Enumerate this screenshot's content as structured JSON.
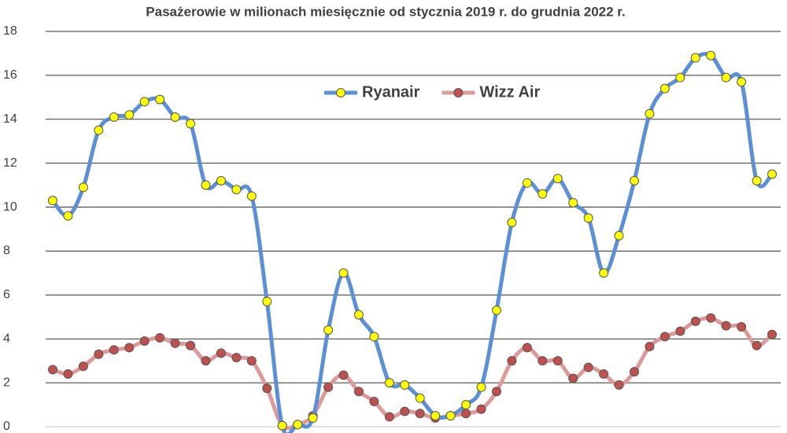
{
  "chart_data": {
    "type": "line",
    "title": "Pasażerowie w milionach miesięcznie od stycznia 2019 r. do grudnia 2022 r.",
    "ylim": [
      0,
      18
    ],
    "yticks": [
      0,
      2,
      4,
      6,
      8,
      10,
      12,
      14,
      16,
      18
    ],
    "grid": true,
    "legend": "top",
    "series": [
      {
        "name": "Ryanair",
        "color": "#5b8fd6",
        "marker_color": "#ffff00",
        "values": [
          10.3,
          9.6,
          10.9,
          13.5,
          14.1,
          14.2,
          14.8,
          14.9,
          14.1,
          13.8,
          11.0,
          11.2,
          10.8,
          10.5,
          5.7,
          0.05,
          0.1,
          0.4,
          4.4,
          7.0,
          5.1,
          4.1,
          2.0,
          1.9,
          1.3,
          0.5,
          0.5,
          1.0,
          1.8,
          5.3,
          9.3,
          11.1,
          10.6,
          11.3,
          10.2,
          9.5,
          7.0,
          8.7,
          11.2,
          14.25,
          15.4,
          15.9,
          16.8,
          16.9,
          15.9,
          15.7,
          11.2,
          11.5
        ]
      },
      {
        "name": "Wizz Air",
        "color": "#dc9a9a",
        "marker_color": "#c0504d",
        "values": [
          2.6,
          2.4,
          2.75,
          3.3,
          3.5,
          3.6,
          3.9,
          4.05,
          3.8,
          3.7,
          3.0,
          3.35,
          3.15,
          3.0,
          1.75,
          0.05,
          0.1,
          0.5,
          1.8,
          2.35,
          1.6,
          1.15,
          0.45,
          0.7,
          0.6,
          0.4,
          0.5,
          0.6,
          0.8,
          1.6,
          3.0,
          3.6,
          3.0,
          3.0,
          2.2,
          2.7,
          2.4,
          1.9,
          2.5,
          3.65,
          4.1,
          4.35,
          4.8,
          4.95,
          4.6,
          4.55,
          3.7,
          4.2
        ]
      }
    ]
  }
}
